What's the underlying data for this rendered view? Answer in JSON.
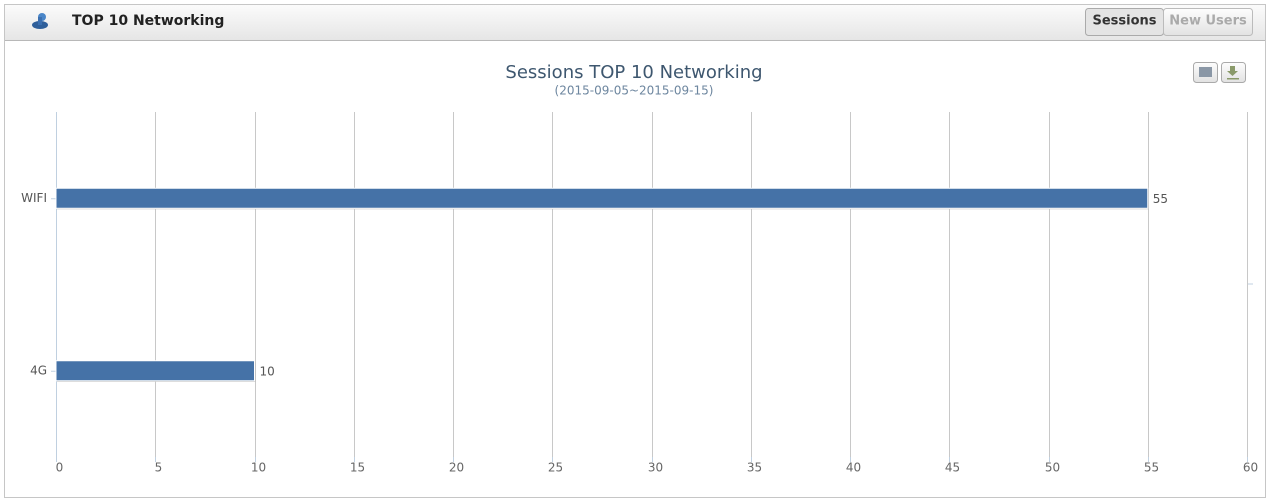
{
  "header": {
    "title": "TOP 10 Networking",
    "tabs": [
      "Sessions",
      "New Users"
    ]
  },
  "chart_data": {
    "type": "bar",
    "orientation": "horizontal",
    "title": "Sessions TOP 10 Networking",
    "subtitle": "(2015-09-05~2015-09-15)",
    "categories": [
      "WIFI",
      "4G"
    ],
    "values": [
      55,
      10
    ],
    "color": "#4572a7",
    "xlim": [
      0,
      60
    ],
    "xticks": [
      0,
      5,
      10,
      15,
      20,
      25,
      30,
      35,
      40,
      45,
      50,
      55,
      60
    ],
    "grid": true,
    "data_labels": true
  }
}
